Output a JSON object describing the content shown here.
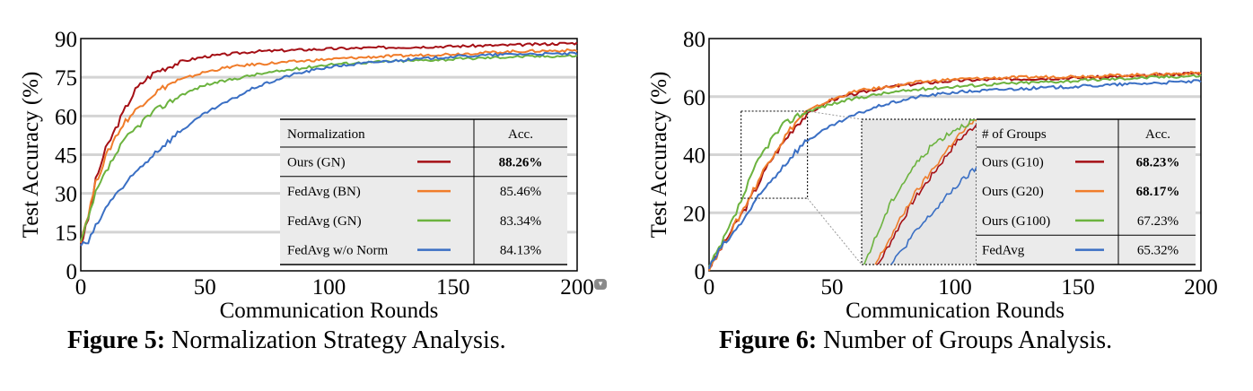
{
  "chart_data": [
    {
      "type": "line",
      "id": "fig5",
      "caption_label": "Figure 5:",
      "caption_text": " Normalization Strategy Analysis.",
      "xlabel": "Communication Rounds",
      "ylabel": "Test Accuracy (%)",
      "xlim": [
        0,
        200
      ],
      "ylim": [
        0,
        90
      ],
      "xticks": [
        0,
        50,
        100,
        150,
        200
      ],
      "yticks": [
        0,
        15,
        30,
        45,
        60,
        75,
        90
      ],
      "grid": "horizontal",
      "series": [
        {
          "name": "Ours (GN)",
          "color": "#a50f15",
          "points": [
            [
              0,
              10
            ],
            [
              3,
              20
            ],
            [
              6,
              35
            ],
            [
              10,
              47
            ],
            [
              14,
              55
            ],
            [
              18,
              63
            ],
            [
              22,
              70
            ],
            [
              26,
              74
            ],
            [
              30,
              77
            ],
            [
              35,
              79
            ],
            [
              40,
              81
            ],
            [
              50,
              83
            ],
            [
              60,
              84
            ],
            [
              70,
              85
            ],
            [
              85,
              85.5
            ],
            [
              100,
              86
            ],
            [
              120,
              86.5
            ],
            [
              150,
              87
            ],
            [
              175,
              87.5
            ],
            [
              200,
              88.26
            ]
          ]
        },
        {
          "name": "FedAvg (BN)",
          "color": "#f07c2a",
          "points": [
            [
              0,
              12
            ],
            [
              3,
              22
            ],
            [
              6,
              34
            ],
            [
              10,
              44
            ],
            [
              14,
              52
            ],
            [
              18,
              58
            ],
            [
              22,
              62
            ],
            [
              26,
              66
            ],
            [
              30,
              69
            ],
            [
              35,
              72
            ],
            [
              40,
              74
            ],
            [
              50,
              77
            ],
            [
              60,
              79
            ],
            [
              70,
              80
            ],
            [
              85,
              81
            ],
            [
              100,
              82
            ],
            [
              120,
              83
            ],
            [
              150,
              84
            ],
            [
              175,
              85
            ],
            [
              200,
              85.46
            ]
          ]
        },
        {
          "name": "FedAvg (GN)",
          "color": "#6cb33f",
          "points": [
            [
              0,
              11
            ],
            [
              3,
              20
            ],
            [
              6,
              30
            ],
            [
              10,
              38
            ],
            [
              14,
              45
            ],
            [
              18,
              51
            ],
            [
              22,
              55
            ],
            [
              26,
              59
            ],
            [
              30,
              62
            ],
            [
              35,
              65
            ],
            [
              40,
              68
            ],
            [
              50,
              72
            ],
            [
              60,
              74
            ],
            [
              70,
              76
            ],
            [
              85,
              78
            ],
            [
              100,
              80
            ],
            [
              120,
              81
            ],
            [
              150,
              82
            ],
            [
              175,
              83
            ],
            [
              200,
              83.34
            ]
          ]
        },
        {
          "name": "FedAvg w/o Norm",
          "color": "#3a6fc4",
          "points": [
            [
              0,
              10
            ],
            [
              3,
              11
            ],
            [
              6,
              17
            ],
            [
              10,
              24
            ],
            [
              14,
              30
            ],
            [
              18,
              33
            ],
            [
              22,
              38
            ],
            [
              26,
              42
            ],
            [
              30,
              46
            ],
            [
              35,
              50
            ],
            [
              40,
              54
            ],
            [
              50,
              61
            ],
            [
              60,
              66
            ],
            [
              70,
              71
            ],
            [
              85,
              76
            ],
            [
              100,
              79
            ],
            [
              120,
              81
            ],
            [
              150,
              83
            ],
            [
              175,
              84
            ],
            [
              200,
              84.13
            ]
          ]
        }
      ],
      "legend_table": {
        "headers": [
          "Normalization",
          "Acc."
        ],
        "rows": [
          {
            "label": "Ours (GN)",
            "value": "88.26%",
            "bold": true
          },
          {
            "label": "FedAvg (BN)",
            "value": "85.46%",
            "bold": false
          },
          {
            "label": "FedAvg (GN)",
            "value": "83.34%",
            "bold": false
          },
          {
            "label": "FedAvg w/o Norm",
            "value": "84.13%",
            "bold": false
          }
        ],
        "placement": "bottom-right"
      }
    },
    {
      "type": "line",
      "id": "fig6",
      "caption_label": "Figure 6:",
      "caption_text": " Number of Groups Analysis.",
      "xlabel": "Communication Rounds",
      "ylabel": "Test Accuracy (%)",
      "xlim": [
        0,
        200
      ],
      "ylim": [
        0,
        80
      ],
      "xticks": [
        0,
        50,
        100,
        150,
        200
      ],
      "yticks": [
        0,
        20,
        40,
        60,
        80
      ],
      "grid": "horizontal",
      "series": [
        {
          "name": "Ours (G10)",
          "color": "#a50f15",
          "points": [
            [
              0,
              1
            ],
            [
              5,
              8
            ],
            [
              10,
              15
            ],
            [
              15,
              22
            ],
            [
              20,
              30
            ],
            [
              25,
              38
            ],
            [
              30,
              44
            ],
            [
              35,
              50
            ],
            [
              40,
              54
            ],
            [
              50,
              59
            ],
            [
              60,
              61
            ],
            [
              70,
              63
            ],
            [
              85,
              64.5
            ],
            [
              100,
              65.5
            ],
            [
              120,
              66
            ],
            [
              150,
              66.5
            ],
            [
              175,
              67
            ],
            [
              200,
              68.23
            ]
          ]
        },
        {
          "name": "Ours (G20)",
          "color": "#f07c2a",
          "points": [
            [
              0,
              1
            ],
            [
              5,
              8
            ],
            [
              10,
              15
            ],
            [
              15,
              23
            ],
            [
              20,
              31
            ],
            [
              25,
              39
            ],
            [
              30,
              45
            ],
            [
              35,
              51
            ],
            [
              40,
              55
            ],
            [
              50,
              59
            ],
            [
              60,
              62
            ],
            [
              70,
              63
            ],
            [
              85,
              65
            ],
            [
              100,
              66
            ],
            [
              120,
              66.5
            ],
            [
              150,
              67
            ],
            [
              175,
              67.5
            ],
            [
              200,
              68.17
            ]
          ]
        },
        {
          "name": "Ours (G100)",
          "color": "#6cb33f",
          "points": [
            [
              0,
              1
            ],
            [
              5,
              9
            ],
            [
              10,
              18
            ],
            [
              15,
              28
            ],
            [
              20,
              38
            ],
            [
              25,
              45
            ],
            [
              30,
              50
            ],
            [
              35,
              53
            ],
            [
              40,
              55
            ],
            [
              50,
              57.5
            ],
            [
              60,
              59.5
            ],
            [
              70,
              61
            ],
            [
              85,
              62.5
            ],
            [
              100,
              63.5
            ],
            [
              120,
              64.5
            ],
            [
              150,
              65.5
            ],
            [
              175,
              66.5
            ],
            [
              200,
              67.23
            ]
          ]
        },
        {
          "name": "FedAvg",
          "color": "#3a6fc4",
          "points": [
            [
              0,
              1
            ],
            [
              5,
              8
            ],
            [
              10,
              13
            ],
            [
              15,
              19
            ],
            [
              20,
              25
            ],
            [
              25,
              31
            ],
            [
              30,
              36
            ],
            [
              35,
              41
            ],
            [
              40,
              45
            ],
            [
              50,
              50
            ],
            [
              60,
              54
            ],
            [
              70,
              57
            ],
            [
              85,
              60
            ],
            [
              100,
              61.5
            ],
            [
              120,
              62.5
            ],
            [
              150,
              63.5
            ],
            [
              175,
              64.5
            ],
            [
              200,
              65.32
            ]
          ]
        }
      ],
      "legend_table": {
        "headers": [
          "# of Groups",
          "Acc."
        ],
        "rows": [
          {
            "label": "Ours (G10)",
            "value": "68.23%",
            "bold": true
          },
          {
            "label": "Ours (G20)",
            "value": "68.17%",
            "bold": true
          },
          {
            "label": "Ours (G100)",
            "value": "67.23%",
            "bold": false
          },
          {
            "label": "FedAvg",
            "value": "65.32%",
            "bold": false
          }
        ],
        "placement": "bottom-right"
      },
      "zoom_region": {
        "xlim": [
          13,
          40
        ],
        "ylim": [
          25,
          55
        ]
      }
    }
  ]
}
